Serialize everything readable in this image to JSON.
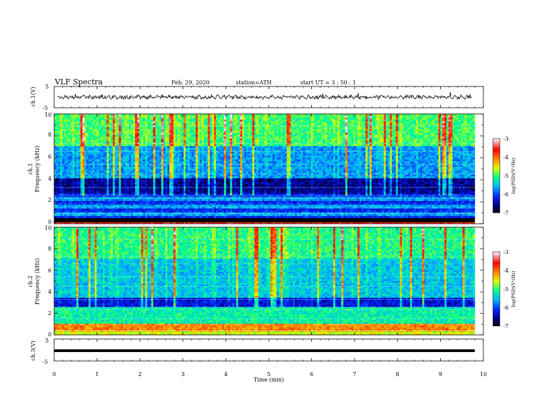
{
  "header": {
    "title": "VLF  Spectra",
    "date": "Feb. 29, 2020",
    "station": "station=ATH",
    "start": "start  UT  =    3  : 50 : 1"
  },
  "chart_data": [
    {
      "type": "line",
      "panel": "ch1-waveform",
      "ylabel": "ch.1(V)",
      "ylim": [
        -5,
        5
      ],
      "ytick_labels": [
        "5",
        "-5"
      ],
      "xlim": [
        0,
        10
      ],
      "trace_mean": 0,
      "trace_color": "#000000"
    },
    {
      "type": "heatmap",
      "panel": "ch1-spectrogram",
      "ylabel": [
        "ch.1",
        "Frequency  (kHz)"
      ],
      "ylim": [
        0,
        10
      ],
      "ytick_labels": [
        "0",
        "2",
        "4",
        "6",
        "8",
        "10"
      ],
      "xlim": [
        0,
        9.8
      ],
      "colorbar": {
        "label": "log(PSD)(V²/Hz)",
        "range": [
          -7,
          -3
        ],
        "tick_labels": [
          "-3",
          "-4",
          "-5",
          "-6",
          "-7"
        ],
        "colors": [
          "#000000",
          "#0000a0",
          "#0040ff",
          "#00c8ff",
          "#00ff80",
          "#ffff00",
          "#ff8000",
          "#ff0000",
          "#ffffff"
        ]
      }
    },
    {
      "type": "heatmap",
      "panel": "ch2-spectrogram",
      "ylabel": [
        "ch.2",
        "Frequency  (kHz)"
      ],
      "ylim": [
        0,
        10
      ],
      "ytick_labels": [
        "0",
        "2",
        "4",
        "6",
        "8",
        "10"
      ],
      "xlim": [
        0,
        9.8
      ],
      "colorbar": {
        "label": "log(PSD)(V²/Hz)",
        "range": [
          -7,
          -3
        ],
        "tick_labels": [
          "-3",
          "-4",
          "-5",
          "-6",
          "-7"
        ]
      }
    },
    {
      "type": "line",
      "panel": "ch3-waveform",
      "ylabel": "ch.3(V)",
      "ylim": [
        -5,
        5
      ],
      "ytick_labels": [
        "5",
        "-5"
      ],
      "xlim": [
        0,
        10
      ],
      "trace_mean": -0.5,
      "trace_color": "#000000"
    }
  ],
  "x_axis": {
    "label": "Time  (min)",
    "tick_labels": [
      "0",
      "1",
      "2",
      "3",
      "4",
      "5",
      "6",
      "7",
      "8",
      "9",
      "10"
    ]
  }
}
